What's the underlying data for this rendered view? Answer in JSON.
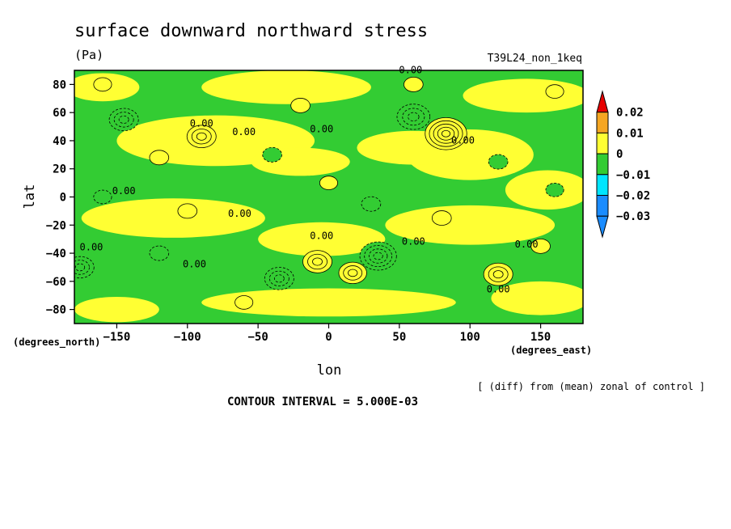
{
  "chart_data": {
    "type": "heatmap",
    "title": "surface downward northward stress",
    "units": "(Pa)",
    "run_label": "T39L24_non_1keq",
    "xlabel": "lon",
    "ylabel": "lat",
    "x_unit_note": "(degrees_east)",
    "y_unit_note": "(degrees_north)",
    "xlim": [
      -180,
      180
    ],
    "ylim": [
      -90,
      90
    ],
    "x_ticks": [
      -150,
      -100,
      -50,
      0,
      50,
      100,
      150
    ],
    "y_ticks": [
      80,
      60,
      40,
      20,
      0,
      -20,
      -40,
      -60,
      -80
    ],
    "x_tick_labels": [
      "−150",
      "−100",
      "−50",
      "0",
      "50",
      "100",
      "150"
    ],
    "y_tick_labels": [
      "80",
      "60",
      "40",
      "20",
      "0",
      "−20",
      "−40",
      "−60",
      "−80"
    ],
    "description_note": "[ (diff) from (mean) zonal of control ]",
    "contour_interval_text": "CONTOUR INTERVAL = 5.000E-03",
    "contour_label": "0.00",
    "colorbar": {
      "labels": [
        "0.02",
        "0.01",
        "0",
        "−0.01",
        "−0.02",
        "−0.03"
      ],
      "colors": [
        "#e60000",
        "#f5a623",
        "#ffff33",
        "#33cc33",
        "#00e5ff",
        "#1a8cff",
        "#1a8cff"
      ],
      "bounds": [
        0.02,
        0.01,
        0,
        -0.01,
        -0.02,
        -0.03
      ]
    },
    "levels": {
      "above_0_02": "#e60000",
      "0_01_to_0_02": "#f5a623",
      "0_to_0_01": "#ffff33",
      "-0_01_to_0": "#33cc33",
      "-0_02_to_-0_01": "#00e5ff",
      "-0_03_to_-0_02": "#1a8cff"
    },
    "features": [
      {
        "lon": -90,
        "lat": 43,
        "value": 0.012
      },
      {
        "lon": 83,
        "lat": 45,
        "value": 0.022
      },
      {
        "lon": 60,
        "lat": 57,
        "value": -0.015
      },
      {
        "lon": -145,
        "lat": 55,
        "value": -0.012
      },
      {
        "lon": 35,
        "lat": -42,
        "value": -0.018
      },
      {
        "lon": -8,
        "lat": -46,
        "value": 0.012
      },
      {
        "lon": 17,
        "lat": -54,
        "value": 0.011
      },
      {
        "lon": 120,
        "lat": -55,
        "value": 0.012
      },
      {
        "lon": -35,
        "lat": -58,
        "value": -0.012
      },
      {
        "lon": -176,
        "lat": -50,
        "value": -0.011
      },
      {
        "lon": 60,
        "lat": 80,
        "value": 0.004
      },
      {
        "lon": -20,
        "lat": 65,
        "value": 0.004
      },
      {
        "lon": -120,
        "lat": 28,
        "value": 0.004
      },
      {
        "lon": 0,
        "lat": 10,
        "value": 0.003
      },
      {
        "lon": -100,
        "lat": -10,
        "value": 0.004
      },
      {
        "lon": 80,
        "lat": -15,
        "value": 0.004
      },
      {
        "lon": 150,
        "lat": -35,
        "value": 0.004
      },
      {
        "lon": -60,
        "lat": -75,
        "value": 0.003
      },
      {
        "lon": 160,
        "lat": 75,
        "value": 0.003
      },
      {
        "lon": -160,
        "lat": 80,
        "value": 0.003
      },
      {
        "lon": 120,
        "lat": 25,
        "value": -0.004
      },
      {
        "lon": -160,
        "lat": 0,
        "value": -0.003
      },
      {
        "lon": 30,
        "lat": -5,
        "value": -0.004
      },
      {
        "lon": -120,
        "lat": -40,
        "value": -0.004
      },
      {
        "lon": 160,
        "lat": 5,
        "value": -0.003
      },
      {
        "lon": -40,
        "lat": 30,
        "value": -0.004
      }
    ],
    "grid": false,
    "legend_position": "right"
  }
}
